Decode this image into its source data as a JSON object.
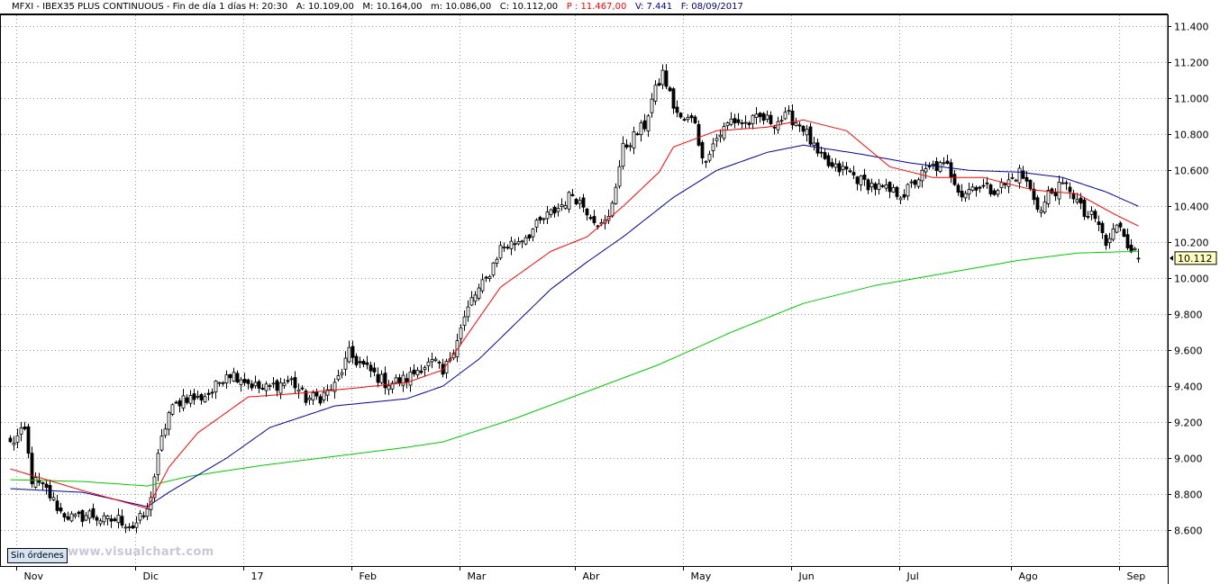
{
  "header": {
    "symbol": "MFXI - IBEX35 PLUS CONTINUOUS - Fin de día 1 días",
    "time": "H: 20:30",
    "open": "A: 10.109,00",
    "high": "M: 10.164,00",
    "low": "m: 10.086,00",
    "close": "C: 10.112,00",
    "price": "P : 11.467,00",
    "volume": "V: 7.441",
    "date": "F: 08/09/2017",
    "price_color": "#ff0000",
    "volume_color": "#000080"
  },
  "orders_label": "Sin órdenes",
  "watermark": "www.visualchart.com",
  "last_price_label": "10.112",
  "chart_data": {
    "type": "candlestick",
    "ylim": [
      8400,
      11467
    ],
    "y_ticks": [
      "8.600",
      "8.800",
      "9.000",
      "9.200",
      "9.400",
      "9.600",
      "9.800",
      "10.000",
      "10.200",
      "10.400",
      "10.600",
      "10.800",
      "11.000",
      "11.200",
      "11.400"
    ],
    "x_ticks": [
      "Nov",
      "Dic",
      "17",
      "Feb",
      "Mar",
      "Abr",
      "May",
      "Jun",
      "Jul",
      "Ago",
      "Sep"
    ],
    "grid": true,
    "colors": {
      "up": "#ffffff",
      "down": "#000000",
      "ma_short": "#ff0000",
      "ma_mid": "#0000a0",
      "ma_long": "#00cc00",
      "last_label_bg": "#ffffc0"
    },
    "price_anchors": [
      [
        0,
        9080
      ],
      [
        4,
        9150
      ],
      [
        6,
        8880
      ],
      [
        10,
        8820
      ],
      [
        14,
        8700
      ],
      [
        18,
        8660
      ],
      [
        22,
        8690
      ],
      [
        26,
        8650
      ],
      [
        30,
        8660
      ],
      [
        34,
        8620
      ],
      [
        38,
        8700
      ],
      [
        40,
        8900
      ],
      [
        42,
        9100
      ],
      [
        44,
        9250
      ],
      [
        48,
        9340
      ],
      [
        52,
        9330
      ],
      [
        56,
        9370
      ],
      [
        60,
        9480
      ],
      [
        64,
        9450
      ],
      [
        66,
        9420
      ],
      [
        70,
        9380
      ],
      [
        74,
        9410
      ],
      [
        78,
        9430
      ],
      [
        82,
        9330
      ],
      [
        86,
        9340
      ],
      [
        90,
        9400
      ],
      [
        94,
        9580
      ],
      [
        96,
        9540
      ],
      [
        100,
        9480
      ],
      [
        104,
        9420
      ],
      [
        106,
        9420
      ],
      [
        110,
        9440
      ],
      [
        114,
        9510
      ],
      [
        118,
        9530
      ],
      [
        120,
        9460
      ],
      [
        124,
        9670
      ],
      [
        128,
        9880
      ],
      [
        132,
        9990
      ],
      [
        136,
        10170
      ],
      [
        140,
        10200
      ],
      [
        144,
        10250
      ],
      [
        148,
        10330
      ],
      [
        152,
        10390
      ],
      [
        156,
        10470
      ],
      [
        160,
        10380
      ],
      [
        164,
        10290
      ],
      [
        166,
        10330
      ],
      [
        170,
        10720
      ],
      [
        174,
        10810
      ],
      [
        176,
        10850
      ],
      [
        178,
        10990
      ],
      [
        181,
        11140
      ],
      [
        184,
        10960
      ],
      [
        186,
        10880
      ],
      [
        190,
        10880
      ],
      [
        192,
        10650
      ],
      [
        196,
        10780
      ],
      [
        200,
        10880
      ],
      [
        204,
        10860
      ],
      [
        208,
        10890
      ],
      [
        212,
        10870
      ],
      [
        216,
        10900
      ],
      [
        220,
        10840
      ],
      [
        224,
        10680
      ],
      [
        228,
        10610
      ],
      [
        232,
        10600
      ],
      [
        236,
        10540
      ],
      [
        240,
        10510
      ],
      [
        244,
        10480
      ],
      [
        248,
        10470
      ],
      [
        252,
        10560
      ],
      [
        256,
        10620
      ],
      [
        260,
        10620
      ],
      [
        264,
        10470
      ],
      [
        268,
        10520
      ],
      [
        272,
        10490
      ],
      [
        276,
        10520
      ],
      [
        280,
        10590
      ],
      [
        282,
        10530
      ],
      [
        286,
        10370
      ],
      [
        288,
        10470
      ],
      [
        292,
        10510
      ],
      [
        294,
        10500
      ],
      [
        298,
        10350
      ],
      [
        300,
        10340
      ],
      [
        302,
        10300
      ],
      [
        304,
        10180
      ],
      [
        306,
        10260
      ],
      [
        308,
        10300
      ],
      [
        310,
        10200
      ],
      [
        312,
        10140
      ],
      [
        313,
        10112
      ]
    ],
    "ma_short_anchors": [
      [
        0,
        8940
      ],
      [
        20,
        8820
      ],
      [
        38,
        8720
      ],
      [
        44,
        8950
      ],
      [
        52,
        9140
      ],
      [
        66,
        9340
      ],
      [
        80,
        9360
      ],
      [
        96,
        9390
      ],
      [
        110,
        9420
      ],
      [
        120,
        9490
      ],
      [
        136,
        9950
      ],
      [
        150,
        10150
      ],
      [
        160,
        10230
      ],
      [
        170,
        10400
      ],
      [
        180,
        10590
      ],
      [
        184,
        10730
      ],
      [
        196,
        10820
      ],
      [
        210,
        10840
      ],
      [
        220,
        10880
      ],
      [
        232,
        10820
      ],
      [
        244,
        10620
      ],
      [
        256,
        10560
      ],
      [
        270,
        10560
      ],
      [
        284,
        10490
      ],
      [
        296,
        10470
      ],
      [
        306,
        10360
      ],
      [
        313,
        10290
      ]
    ],
    "ma_mid_anchors": [
      [
        0,
        8830
      ],
      [
        20,
        8810
      ],
      [
        38,
        8730
      ],
      [
        44,
        8810
      ],
      [
        60,
        9000
      ],
      [
        72,
        9170
      ],
      [
        90,
        9290
      ],
      [
        110,
        9330
      ],
      [
        120,
        9400
      ],
      [
        130,
        9550
      ],
      [
        150,
        9940
      ],
      [
        160,
        10090
      ],
      [
        170,
        10230
      ],
      [
        184,
        10450
      ],
      [
        196,
        10600
      ],
      [
        210,
        10700
      ],
      [
        220,
        10740
      ],
      [
        236,
        10690
      ],
      [
        250,
        10640
      ],
      [
        266,
        10600
      ],
      [
        280,
        10590
      ],
      [
        292,
        10560
      ],
      [
        304,
        10480
      ],
      [
        313,
        10400
      ]
    ],
    "ma_long_anchors": [
      [
        0,
        8880
      ],
      [
        20,
        8870
      ],
      [
        38,
        8845
      ],
      [
        50,
        8900
      ],
      [
        70,
        8960
      ],
      [
        90,
        9010
      ],
      [
        110,
        9060
      ],
      [
        120,
        9090
      ],
      [
        140,
        9220
      ],
      [
        160,
        9370
      ],
      [
        180,
        9520
      ],
      [
        200,
        9700
      ],
      [
        220,
        9860
      ],
      [
        240,
        9960
      ],
      [
        260,
        10030
      ],
      [
        280,
        10100
      ],
      [
        296,
        10140
      ],
      [
        313,
        10150
      ]
    ]
  }
}
